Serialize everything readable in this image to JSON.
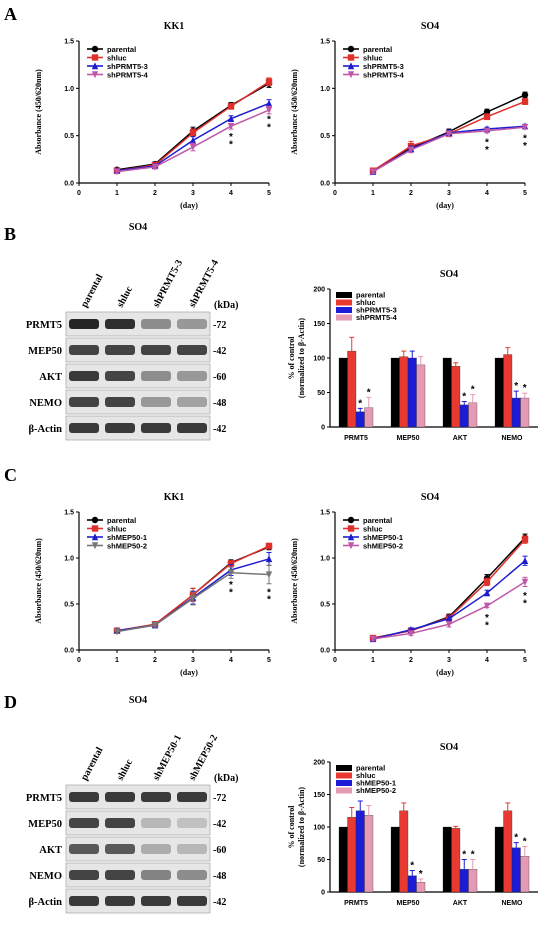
{
  "panels": {
    "A": {
      "letter": "A"
    },
    "B": {
      "letter": "B"
    },
    "C": {
      "letter": "C"
    },
    "D": {
      "letter": "D"
    }
  },
  "blots": [
    {
      "panel": "B",
      "title": "SO4",
      "lanes": [
        "parental",
        "shluc",
        "shPRMT5-3",
        "shPRMT5-4"
      ],
      "kda_label": "(kDa)",
      "rows": [
        {
          "name": "PRMT5",
          "kda": "-72",
          "intensity": [
            0.95,
            0.9,
            0.45,
            0.4
          ]
        },
        {
          "name": "MEP50",
          "kda": "-42",
          "intensity": [
            0.8,
            0.8,
            0.8,
            0.8
          ]
        },
        {
          "name": "AKT",
          "kda": "-60",
          "intensity": [
            0.85,
            0.8,
            0.45,
            0.4
          ]
        },
        {
          "name": "NEMO",
          "kda": "-48",
          "intensity": [
            0.8,
            0.8,
            0.4,
            0.35
          ]
        },
        {
          "name": "β-Actin",
          "kda": "-42",
          "intensity": [
            0.85,
            0.85,
            0.85,
            0.85
          ]
        }
      ]
    },
    {
      "panel": "D",
      "title": "SO4",
      "lanes": [
        "parental",
        "shluc",
        "shMEP50-1",
        "shMEP50-2"
      ],
      "kda_label": "(kDa)",
      "rows": [
        {
          "name": "PRMT5",
          "kda": "-72",
          "intensity": [
            0.85,
            0.85,
            0.85,
            0.85
          ]
        },
        {
          "name": "MEP50",
          "kda": "-42",
          "intensity": [
            0.8,
            0.8,
            0.25,
            0.2
          ]
        },
        {
          "name": "AKT",
          "kda": "-60",
          "intensity": [
            0.7,
            0.7,
            0.3,
            0.25
          ]
        },
        {
          "name": "NEMO",
          "kda": "-48",
          "intensity": [
            0.8,
            0.8,
            0.5,
            0.45
          ]
        },
        {
          "name": "β-Actin",
          "kda": "-42",
          "intensity": [
            0.85,
            0.85,
            0.85,
            0.85
          ]
        }
      ]
    }
  ],
  "chart_data": [
    {
      "id": "A-KK1",
      "type": "line",
      "title": "KK1",
      "xlabel": "(day)",
      "ylabel": "Absorbance (450/620nm)",
      "xlim": [
        0,
        5
      ],
      "ylim": [
        0,
        1.5
      ],
      "xticks": [
        0,
        1,
        2,
        3,
        4,
        5
      ],
      "yticks": [
        0.0,
        0.5,
        1.0,
        1.5
      ],
      "ytick_labels": [
        "0.0",
        "0.5",
        "1.0",
        "1.5"
      ],
      "x": [
        1,
        2,
        3,
        4,
        5
      ],
      "series": [
        {
          "name": "parental",
          "values": [
            0.14,
            0.2,
            0.55,
            0.82,
            1.05
          ],
          "err": [
            0.02,
            0.02,
            0.04,
            0.03,
            0.04
          ],
          "color": "#000000",
          "marker": "circle"
        },
        {
          "name": "shluc",
          "values": [
            0.13,
            0.19,
            0.53,
            0.81,
            1.07
          ],
          "err": [
            0.02,
            0.02,
            0.04,
            0.03,
            0.04
          ],
          "color": "#e0302b",
          "marker": "square"
        },
        {
          "name": "shPRMT5-3",
          "values": [
            0.13,
            0.18,
            0.45,
            0.68,
            0.84
          ],
          "err": [
            0.02,
            0.02,
            0.04,
            0.03,
            0.04
          ],
          "color": "#1c1ccf",
          "marker": "triangle-up"
        },
        {
          "name": "shPRMT5-4",
          "values": [
            0.12,
            0.17,
            0.38,
            0.6,
            0.77
          ],
          "err": [
            0.02,
            0.02,
            0.04,
            0.03,
            0.04
          ],
          "color": "#c058a8",
          "marker": "triangle-down"
        }
      ],
      "annotations": [
        {
          "x": 4,
          "text": "*",
          "y": 0.52
        },
        {
          "x": 4,
          "text": "*",
          "y": 0.44
        },
        {
          "x": 5,
          "text": "*",
          "y": 0.7
        },
        {
          "x": 5,
          "text": "*",
          "y": 0.62
        }
      ]
    },
    {
      "id": "A-SO4",
      "type": "line",
      "title": "SO4",
      "xlabel": "(day)",
      "ylabel": "Absorbance (450/620nm)",
      "xlim": [
        0,
        5
      ],
      "ylim": [
        0,
        1.5
      ],
      "xticks": [
        0,
        1,
        2,
        3,
        4,
        5
      ],
      "yticks": [
        0.0,
        0.5,
        1.0,
        1.5
      ],
      "ytick_labels": [
        "0.0",
        "0.5",
        "1.0",
        "1.5"
      ],
      "x": [
        1,
        2,
        3,
        4,
        5
      ],
      "series": [
        {
          "name": "parental",
          "values": [
            0.13,
            0.37,
            0.54,
            0.75,
            0.93
          ],
          "err": [
            0.02,
            0.03,
            0.03,
            0.03,
            0.03
          ],
          "color": "#000000",
          "marker": "circle"
        },
        {
          "name": "shluc",
          "values": [
            0.13,
            0.39,
            0.52,
            0.7,
            0.86
          ],
          "err": [
            0.02,
            0.05,
            0.03,
            0.03,
            0.03
          ],
          "color": "#e0302b",
          "marker": "square"
        },
        {
          "name": "shPRMT5-3",
          "values": [
            0.12,
            0.36,
            0.53,
            0.57,
            0.6
          ],
          "err": [
            0.02,
            0.03,
            0.03,
            0.02,
            0.02
          ],
          "color": "#1c1ccf",
          "marker": "triangle-up"
        },
        {
          "name": "shPRMT5-4",
          "values": [
            0.12,
            0.35,
            0.52,
            0.55,
            0.59
          ],
          "err": [
            0.02,
            0.03,
            0.03,
            0.02,
            0.02
          ],
          "color": "#c058a8",
          "marker": "triangle-down"
        }
      ],
      "annotations": [
        {
          "x": 4,
          "text": "*",
          "y": 0.46
        },
        {
          "x": 4,
          "text": "*",
          "y": 0.38
        },
        {
          "x": 5,
          "text": "*",
          "y": 0.5
        },
        {
          "x": 5,
          "text": "*",
          "y": 0.42
        }
      ]
    },
    {
      "id": "B-bar",
      "type": "bar",
      "title": "SO4",
      "ylabel": "% of control\n(normalized to β-Actin)",
      "ylim": [
        0,
        200
      ],
      "yticks": [
        0,
        50,
        100,
        150,
        200
      ],
      "categories": [
        "PRMT5",
        "MEP50",
        "AKT",
        "NEMO"
      ],
      "series": [
        {
          "name": "parental",
          "values": [
            100,
            100,
            100,
            100
          ],
          "err": [
            0,
            0,
            0,
            0
          ],
          "color": "#000000"
        },
        {
          "name": "shluc",
          "values": [
            110,
            102,
            88,
            105
          ],
          "err": [
            20,
            8,
            5,
            10
          ],
          "color": "#e83a30"
        },
        {
          "name": "shPRMT5-3",
          "values": [
            22,
            100,
            32,
            42
          ],
          "err": [
            5,
            10,
            5,
            10
          ],
          "color": "#1c1cd6"
        },
        {
          "name": "shPRMT5-4",
          "values": [
            28,
            90,
            35,
            42
          ],
          "err": [
            15,
            12,
            12,
            7
          ],
          "color": "#e59ab4"
        }
      ],
      "annotations": [
        {
          "category": "PRMT5",
          "series": 2,
          "text": "*"
        },
        {
          "category": "PRMT5",
          "series": 3,
          "text": "*"
        },
        {
          "category": "AKT",
          "series": 2,
          "text": "*"
        },
        {
          "category": "AKT",
          "series": 3,
          "text": "*"
        },
        {
          "category": "NEMO",
          "series": 2,
          "text": "*"
        },
        {
          "category": "NEMO",
          "series": 3,
          "text": "*"
        }
      ]
    },
    {
      "id": "C-KK1",
      "type": "line",
      "title": "KK1",
      "xlabel": "(day)",
      "ylabel": "Absorbance (450/620nm)",
      "xlim": [
        0,
        5
      ],
      "ylim": [
        0,
        1.5
      ],
      "xticks": [
        0,
        1,
        2,
        3,
        4,
        5
      ],
      "yticks": [
        0.0,
        0.5,
        1.0,
        1.5
      ],
      "ytick_labels": [
        "0.0",
        "0.5",
        "1.0",
        "1.5"
      ],
      "x": [
        1,
        2,
        3,
        4,
        5
      ],
      "series": [
        {
          "name": "parental",
          "values": [
            0.21,
            0.27,
            0.6,
            0.95,
            1.12
          ],
          "err": [
            0.02,
            0.02,
            0.07,
            0.03,
            0.03
          ],
          "color": "#000000",
          "marker": "circle"
        },
        {
          "name": "shluc",
          "values": [
            0.21,
            0.28,
            0.6,
            0.94,
            1.13
          ],
          "err": [
            0.02,
            0.02,
            0.07,
            0.03,
            0.03
          ],
          "color": "#e0302b",
          "marker": "square"
        },
        {
          "name": "shMEP50-1",
          "values": [
            0.21,
            0.27,
            0.57,
            0.87,
            0.99
          ],
          "err": [
            0.02,
            0.02,
            0.07,
            0.06,
            0.07
          ],
          "color": "#1c1ccf",
          "marker": "triangle-up"
        },
        {
          "name": "shMEP50-2",
          "values": [
            0.2,
            0.27,
            0.56,
            0.84,
            0.82
          ],
          "err": [
            0.02,
            0.02,
            0.07,
            0.06,
            0.1
          ],
          "color": "#777777",
          "marker": "triangle-down"
        }
      ],
      "annotations": [
        {
          "x": 4,
          "text": "*",
          "y": 0.74
        },
        {
          "x": 4,
          "text": "*",
          "y": 0.66
        },
        {
          "x": 5,
          "text": "*",
          "y": 0.66
        },
        {
          "x": 5,
          "text": "*",
          "y": 0.58
        }
      ]
    },
    {
      "id": "C-SO4",
      "type": "line",
      "title": "SO4",
      "xlabel": "(day)",
      "ylabel": "Absorbance (450/620nm)",
      "xlim": [
        0,
        5
      ],
      "ylim": [
        0,
        1.5
      ],
      "xticks": [
        0,
        1,
        2,
        3,
        4,
        5
      ],
      "yticks": [
        0.0,
        0.5,
        1.0,
        1.5
      ],
      "ytick_labels": [
        "0.0",
        "0.5",
        "1.0",
        "1.5"
      ],
      "x": [
        1,
        2,
        3,
        4,
        5
      ],
      "series": [
        {
          "name": "parental",
          "values": [
            0.13,
            0.21,
            0.36,
            0.78,
            1.22
          ],
          "err": [
            0.02,
            0.02,
            0.03,
            0.04,
            0.04
          ],
          "color": "#000000",
          "marker": "circle"
        },
        {
          "name": "shluc",
          "values": [
            0.13,
            0.21,
            0.35,
            0.74,
            1.2
          ],
          "err": [
            0.02,
            0.02,
            0.03,
            0.04,
            0.04
          ],
          "color": "#e0302b",
          "marker": "square"
        },
        {
          "name": "shMEP50-1",
          "values": [
            0.12,
            0.22,
            0.34,
            0.62,
            0.97
          ],
          "err": [
            0.02,
            0.02,
            0.03,
            0.03,
            0.05
          ],
          "color": "#1c1ccf",
          "marker": "triangle-up"
        },
        {
          "name": "shMEP50-2",
          "values": [
            0.12,
            0.18,
            0.28,
            0.48,
            0.74
          ],
          "err": [
            0.02,
            0.02,
            0.03,
            0.02,
            0.05
          ],
          "color": "#c058a8",
          "marker": "triangle-down"
        }
      ],
      "annotations": [
        {
          "x": 4,
          "text": "*",
          "y": 0.38
        },
        {
          "x": 4,
          "text": "*",
          "y": 0.3
        },
        {
          "x": 5,
          "text": "*",
          "y": 0.62
        },
        {
          "x": 5,
          "text": "*",
          "y": 0.54
        }
      ]
    },
    {
      "id": "D-bar",
      "type": "bar",
      "title": "SO4",
      "ylabel": "% of control\n(normalized to β-Actin)",
      "ylim": [
        0,
        200
      ],
      "yticks": [
        0,
        50,
        100,
        150,
        200
      ],
      "categories": [
        "PRMT5",
        "MEP50",
        "AKT",
        "NEMO"
      ],
      "series": [
        {
          "name": "parental",
          "values": [
            100,
            100,
            100,
            100
          ],
          "err": [
            0,
            0,
            0,
            0
          ],
          "color": "#000000"
        },
        {
          "name": "shluc",
          "values": [
            115,
            125,
            98,
            125
          ],
          "err": [
            15,
            12,
            3,
            12
          ],
          "color": "#e83a30"
        },
        {
          "name": "shMEP50-1",
          "values": [
            125,
            25,
            35,
            68
          ],
          "err": [
            15,
            8,
            15,
            8
          ],
          "color": "#1c1cd6"
        },
        {
          "name": "shMEP50-2",
          "values": [
            118,
            15,
            35,
            55
          ],
          "err": [
            15,
            5,
            15,
            15
          ],
          "color": "#e59ab4"
        }
      ],
      "annotations": [
        {
          "category": "MEP50",
          "series": 2,
          "text": "*"
        },
        {
          "category": "MEP50",
          "series": 3,
          "text": "*"
        },
        {
          "category": "AKT",
          "series": 2,
          "text": "*"
        },
        {
          "category": "AKT",
          "series": 3,
          "text": "*"
        },
        {
          "category": "NEMO",
          "series": 2,
          "text": "*"
        },
        {
          "category": "NEMO",
          "series": 3,
          "text": "*"
        }
      ]
    }
  ]
}
